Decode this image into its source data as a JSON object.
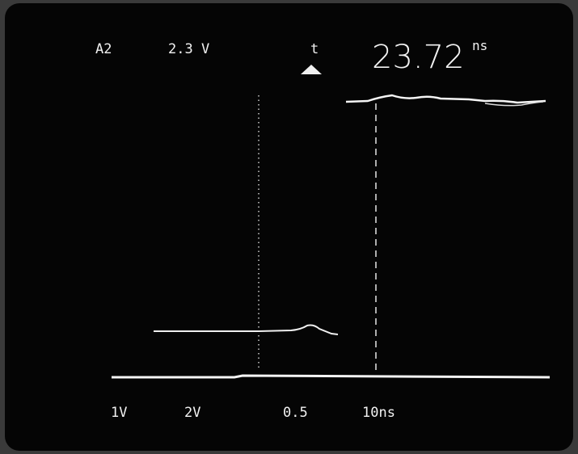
{
  "header": {
    "channel": "A2",
    "level": "2.3 V",
    "delta_symbol": "t",
    "delta_value": "23.72",
    "delta_unit": "ns"
  },
  "footer": {
    "ch1_scale": "1V",
    "ch2_scale": "2V",
    "cursor": "0.5",
    "timebase": "10ns"
  }
}
